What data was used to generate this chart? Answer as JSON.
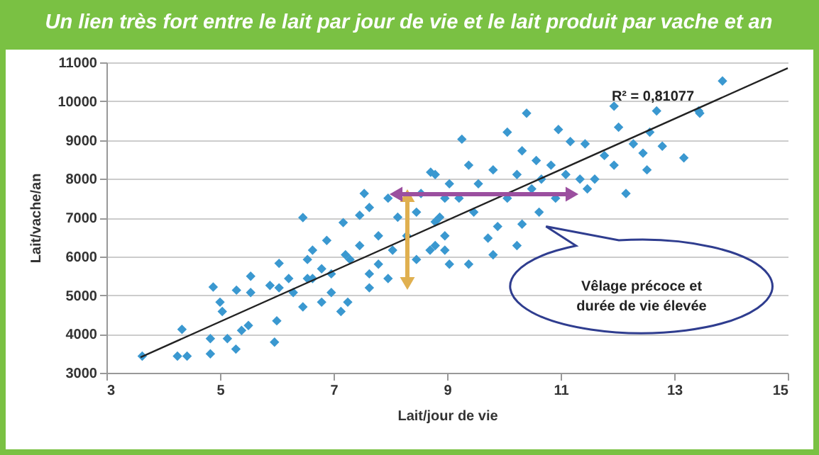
{
  "chart_data": {
    "type": "scatter",
    "title": "Un lien très fort entre le lait par jour de vie et le lait produit par vache et an",
    "xlabel": "Lait/jour de vie",
    "ylabel": "Lait/vache/an",
    "xlim": [
      3,
      15
    ],
    "ylim": [
      3000,
      11000
    ],
    "xticks": [
      3,
      5,
      7,
      9,
      11,
      13,
      15
    ],
    "yticks": [
      3000,
      4000,
      5000,
      6000,
      7000,
      8000,
      9000,
      10000,
      11000
    ],
    "grid": "y",
    "annotations": [
      "R² = 0,81077",
      "Vêlage précoce et\ndurée de vie élevée"
    ],
    "series": [
      {
        "marker": "diamond",
        "color": "#3a98d0",
        "x": [
          3.63,
          4.25,
          4.42,
          4.33,
          4.83,
          4.83,
          4.88,
          5.0,
          5.04,
          5.13,
          5.28,
          5.29,
          5.38,
          5.54,
          5.54,
          5.5,
          5.88,
          5.96,
          6.0,
          6.04,
          6.04,
          6.29,
          6.46,
          6.54,
          6.46,
          6.63,
          6.79,
          6.88,
          7.13,
          7.17,
          7.21,
          7.25,
          7.46,
          7.54,
          7.63,
          7.63,
          7.79,
          7.96,
          8.04,
          8.46,
          8.29,
          8.54,
          8.71,
          8.79,
          8.96,
          8.96,
          6.21,
          6.63,
          6.96,
          7.29,
          7.46,
          7.79,
          8.13,
          8.46,
          8.79,
          7.63,
          7.96,
          6.96,
          6.54,
          6.79,
          13.85,
          13.43,
          13.45,
          12.69,
          11.94,
          10.4,
          12.02,
          10.96,
          10.06,
          9.26,
          12.57,
          12.28,
          12.45,
          12.79,
          13.17,
          12.52,
          12.15,
          11.43,
          11.17,
          11.77,
          11.94,
          11.6,
          11.34,
          11.47,
          10.91,
          10.62,
          10.32,
          10.23,
          9.72,
          9.38,
          9.04,
          9.89,
          10.57,
          10.32,
          9.81,
          9.55,
          9.21,
          8.87,
          10.06,
          10.66,
          10.83,
          9.38,
          8.79,
          9.04,
          9.47,
          8.96,
          9.81,
          8.7,
          10.23,
          10.49,
          11.09
        ],
        "values": [
          3430,
          3430,
          3430,
          4120,
          3880,
          3490,
          5210,
          4820,
          4580,
          3880,
          3610,
          5130,
          4090,
          5490,
          5070,
          4220,
          5250,
          3790,
          4340,
          5820,
          5190,
          5070,
          7000,
          5430,
          4700,
          6160,
          5680,
          6410,
          4580,
          6870,
          6040,
          4820,
          7060,
          7620,
          7260,
          5190,
          5800,
          7500,
          6160,
          5920,
          6530,
          7620,
          8170,
          6890,
          7500,
          6160,
          5430,
          5430,
          5550,
          5920,
          6280,
          6530,
          7010,
          7140,
          6280,
          5550,
          5430,
          5070,
          5920,
          4820,
          10520,
          9750,
          9690,
          9750,
          9870,
          9690,
          9330,
          9270,
          9200,
          9020,
          9200,
          8900,
          8660,
          8840,
          8540,
          8230,
          7620,
          8900,
          8960,
          8600,
          8350,
          7990,
          7990,
          7740,
          7500,
          7140,
          6830,
          6280,
          6470,
          5800,
          5800,
          6770,
          8470,
          8720,
          8230,
          7870,
          7500,
          7010,
          7500,
          7990,
          8350,
          8350,
          8110,
          7870,
          7140,
          6530,
          6040,
          6160,
          8110,
          7740,
          8110
        ]
      },
      {
        "type": "line",
        "color": "#222222",
        "x": [
          3.6,
          15
        ],
        "values": [
          3400,
          10850
        ]
      }
    ]
  }
}
